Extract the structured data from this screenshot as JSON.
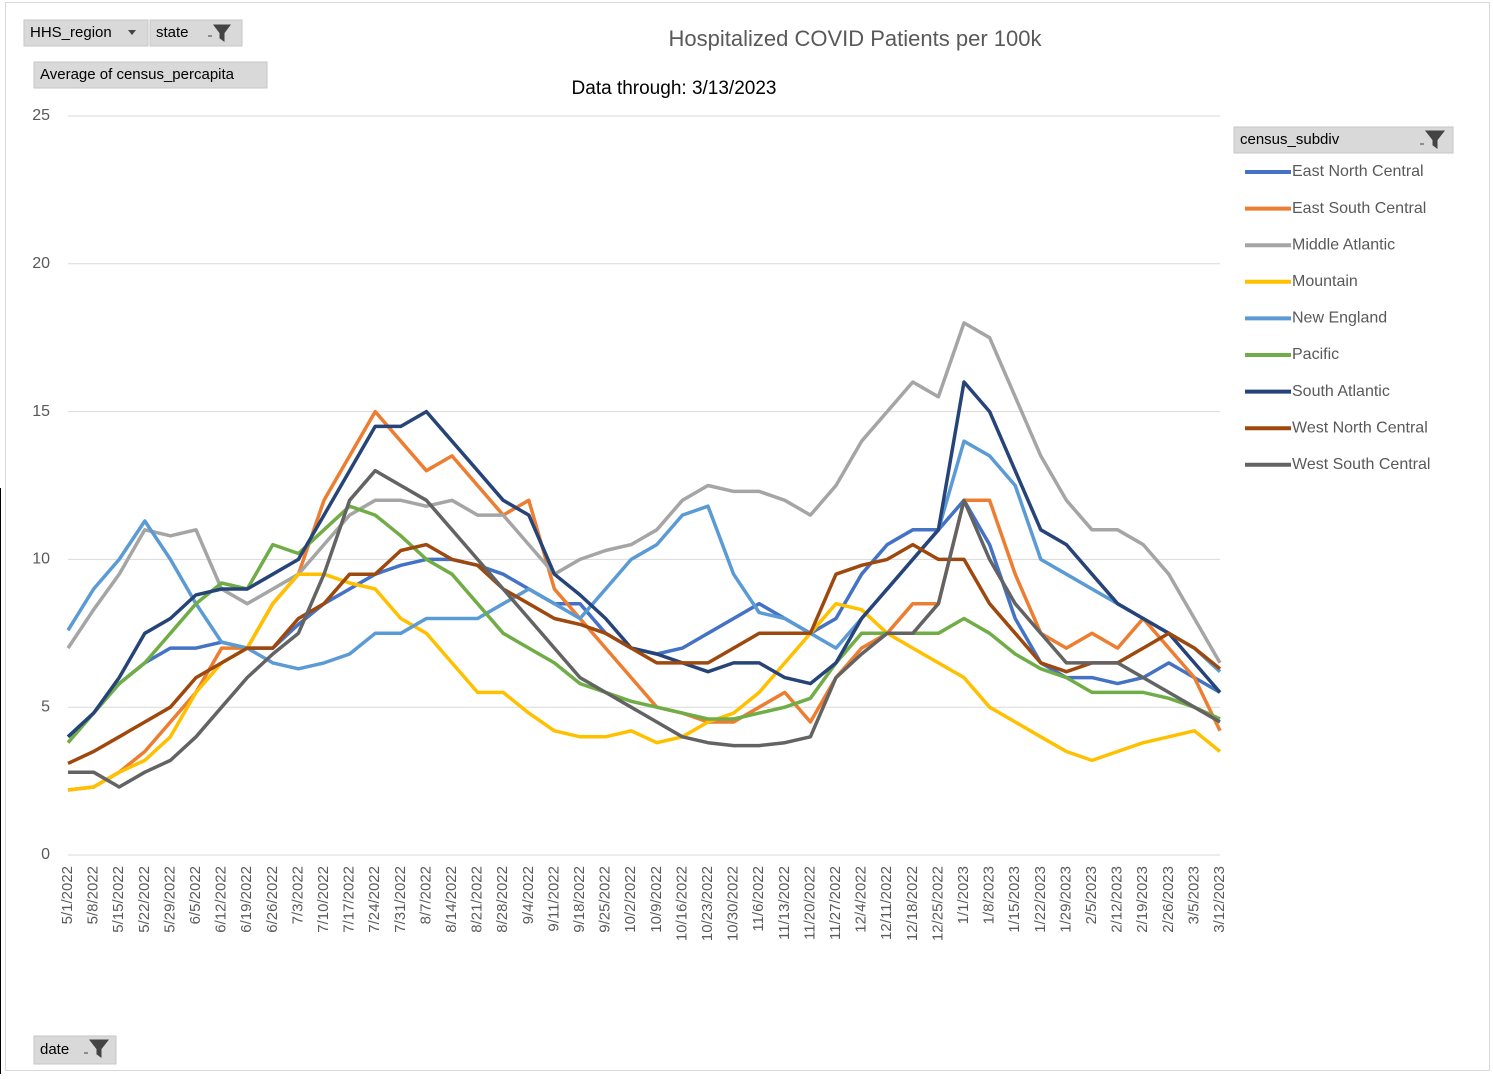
{
  "pivot": {
    "filters": [
      "HHS_region",
      "state"
    ],
    "value_field": "Average of census_percapita",
    "legend_field": "census_subdiv",
    "axis_field": "date"
  },
  "chart_data": {
    "type": "line",
    "title": "Hospitalized COVID Patients per 100k",
    "subtitle": "Data through: 3/13/2023",
    "categories": [
      "5/1/2022",
      "5/8/2022",
      "5/15/2022",
      "5/22/2022",
      "5/29/2022",
      "6/5/2022",
      "6/12/2022",
      "6/19/2022",
      "6/26/2022",
      "7/3/2022",
      "7/10/2022",
      "7/17/2022",
      "7/24/2022",
      "7/31/2022",
      "8/7/2022",
      "8/14/2022",
      "8/21/2022",
      "8/28/2022",
      "9/4/2022",
      "9/11/2022",
      "9/18/2022",
      "9/25/2022",
      "10/2/2022",
      "10/9/2022",
      "10/16/2022",
      "10/23/2022",
      "10/30/2022",
      "11/6/2022",
      "11/13/2022",
      "11/20/2022",
      "11/27/2022",
      "12/4/2022",
      "12/11/2022",
      "12/18/2022",
      "12/25/2022",
      "1/1/2023",
      "1/8/2023",
      "1/15/2023",
      "1/22/2023",
      "1/29/2023",
      "2/5/2023",
      "2/12/2023",
      "2/19/2023",
      "2/26/2023",
      "3/5/2023",
      "3/12/2023"
    ],
    "series": [
      {
        "name": "East North Central",
        "color": "#4472c4",
        "values": [
          4.0,
          4.8,
          5.8,
          6.5,
          7.0,
          7.0,
          7.2,
          7.0,
          7.0,
          7.8,
          8.5,
          9.0,
          9.5,
          9.8,
          10.0,
          10.0,
          9.8,
          9.5,
          9.0,
          8.5,
          8.5,
          7.5,
          7.0,
          6.8,
          7.0,
          7.5,
          8.0,
          8.5,
          8.0,
          7.5,
          8.0,
          9.5,
          10.5,
          11.0,
          11.0,
          12.0,
          10.5,
          8.0,
          6.5,
          6.0,
          6.0,
          5.8,
          6.0,
          6.5,
          6.0,
          5.5
        ]
      },
      {
        "name": "East South Central",
        "color": "#ed7d31",
        "values": [
          2.2,
          2.3,
          2.8,
          3.5,
          4.5,
          5.5,
          7.0,
          7.0,
          8.5,
          9.5,
          12.0,
          13.5,
          15.0,
          14.0,
          13.0,
          13.5,
          12.5,
          11.5,
          12.0,
          9.0,
          8.0,
          7.0,
          6.0,
          5.0,
          4.8,
          4.5,
          4.5,
          5.0,
          5.5,
          4.5,
          6.0,
          7.0,
          7.5,
          8.5,
          8.5,
          12.0,
          12.0,
          9.5,
          7.5,
          7.0,
          7.5,
          7.0,
          8.0,
          7.0,
          6.0,
          4.2
        ]
      },
      {
        "name": "Middle Atlantic",
        "color": "#a5a5a5",
        "values": [
          7.0,
          8.3,
          9.5,
          11.0,
          10.8,
          11.0,
          9.0,
          8.5,
          9.0,
          9.5,
          10.5,
          11.5,
          12.0,
          12.0,
          11.8,
          12.0,
          11.5,
          11.5,
          10.5,
          9.5,
          10.0,
          10.3,
          10.5,
          11.0,
          12.0,
          12.5,
          12.3,
          12.3,
          12.0,
          11.5,
          12.5,
          14.0,
          15.0,
          16.0,
          15.5,
          18.0,
          17.5,
          15.5,
          13.5,
          12.0,
          11.0,
          11.0,
          10.5,
          9.5,
          8.0,
          6.5
        ]
      },
      {
        "name": "Mountain",
        "color": "#ffc000",
        "values": [
          2.2,
          2.3,
          2.8,
          3.2,
          4.0,
          5.5,
          6.5,
          7.0,
          8.5,
          9.5,
          9.5,
          9.2,
          9.0,
          8.0,
          7.5,
          6.5,
          5.5,
          5.5,
          4.8,
          4.2,
          4.0,
          4.0,
          4.2,
          3.8,
          4.0,
          4.5,
          4.8,
          5.5,
          6.5,
          7.5,
          8.5,
          8.3,
          7.5,
          7.0,
          6.5,
          6.0,
          5.0,
          4.5,
          4.0,
          3.5,
          3.2,
          3.5,
          3.8,
          4.0,
          4.2,
          3.5
        ]
      },
      {
        "name": "New England",
        "color": "#5b9bd5",
        "values": [
          7.6,
          9.0,
          10.0,
          11.3,
          10.0,
          8.5,
          7.2,
          7.0,
          6.5,
          6.3,
          6.5,
          6.8,
          7.5,
          7.5,
          8.0,
          8.0,
          8.0,
          8.5,
          9.0,
          8.5,
          8.0,
          9.0,
          10.0,
          10.5,
          11.5,
          11.8,
          9.5,
          8.2,
          8.0,
          7.5,
          7.0,
          8.0,
          9.0,
          10.0,
          11.0,
          14.0,
          13.5,
          12.5,
          10.0,
          9.5,
          9.0,
          8.5,
          8.0,
          7.5,
          7.0,
          6.2
        ]
      },
      {
        "name": "Pacific",
        "color": "#70ad47",
        "values": [
          3.8,
          4.8,
          5.8,
          6.5,
          7.5,
          8.5,
          9.2,
          9.0,
          10.5,
          10.2,
          11.0,
          11.8,
          11.5,
          10.8,
          10.0,
          9.5,
          8.5,
          7.5,
          7.0,
          6.5,
          5.8,
          5.5,
          5.2,
          5.0,
          4.8,
          4.6,
          4.6,
          4.8,
          5.0,
          5.3,
          6.5,
          7.5,
          7.5,
          7.5,
          7.5,
          8.0,
          7.5,
          6.8,
          6.3,
          6.0,
          5.5,
          5.5,
          5.5,
          5.3,
          5.0,
          4.6
        ]
      },
      {
        "name": "South Atlantic",
        "color": "#264478",
        "values": [
          4.0,
          4.8,
          6.0,
          7.5,
          8.0,
          8.8,
          9.0,
          9.0,
          9.5,
          10.0,
          11.5,
          13.0,
          14.5,
          14.5,
          15.0,
          14.0,
          13.0,
          12.0,
          11.5,
          9.5,
          8.8,
          8.0,
          7.0,
          6.8,
          6.5,
          6.2,
          6.5,
          6.5,
          6.0,
          5.8,
          6.5,
          8.0,
          9.0,
          10.0,
          11.0,
          16.0,
          15.0,
          13.0,
          11.0,
          10.5,
          9.5,
          8.5,
          8.0,
          7.5,
          6.5,
          5.5
        ]
      },
      {
        "name": "West North Central",
        "color": "#9e480e",
        "values": [
          3.1,
          3.5,
          4.0,
          4.5,
          5.0,
          6.0,
          6.5,
          7.0,
          7.0,
          8.0,
          8.5,
          9.5,
          9.5,
          10.3,
          10.5,
          10.0,
          9.8,
          9.0,
          8.5,
          8.0,
          7.8,
          7.5,
          7.0,
          6.5,
          6.5,
          6.5,
          7.0,
          7.5,
          7.5,
          7.5,
          9.5,
          9.8,
          10.0,
          10.5,
          10.0,
          10.0,
          8.5,
          7.5,
          6.5,
          6.2,
          6.5,
          6.5,
          7.0,
          7.5,
          7.0,
          6.3
        ]
      },
      {
        "name": "West South Central",
        "color": "#636363",
        "values": [
          2.8,
          2.8,
          2.3,
          2.8,
          3.2,
          4.0,
          5.0,
          6.0,
          6.8,
          7.5,
          9.5,
          12.0,
          13.0,
          12.5,
          12.0,
          11.0,
          10.0,
          9.0,
          8.0,
          7.0,
          6.0,
          5.5,
          5.0,
          4.5,
          4.0,
          3.8,
          3.7,
          3.7,
          3.8,
          4.0,
          6.0,
          6.8,
          7.5,
          7.5,
          8.5,
          12.0,
          10.0,
          8.5,
          7.5,
          6.5,
          6.5,
          6.5,
          6.0,
          5.5,
          5.0,
          4.5
        ]
      }
    ],
    "ylim": [
      0,
      25
    ],
    "yticks": [
      0,
      5,
      10,
      15,
      20,
      25
    ],
    "grid": true,
    "legend": "right"
  }
}
